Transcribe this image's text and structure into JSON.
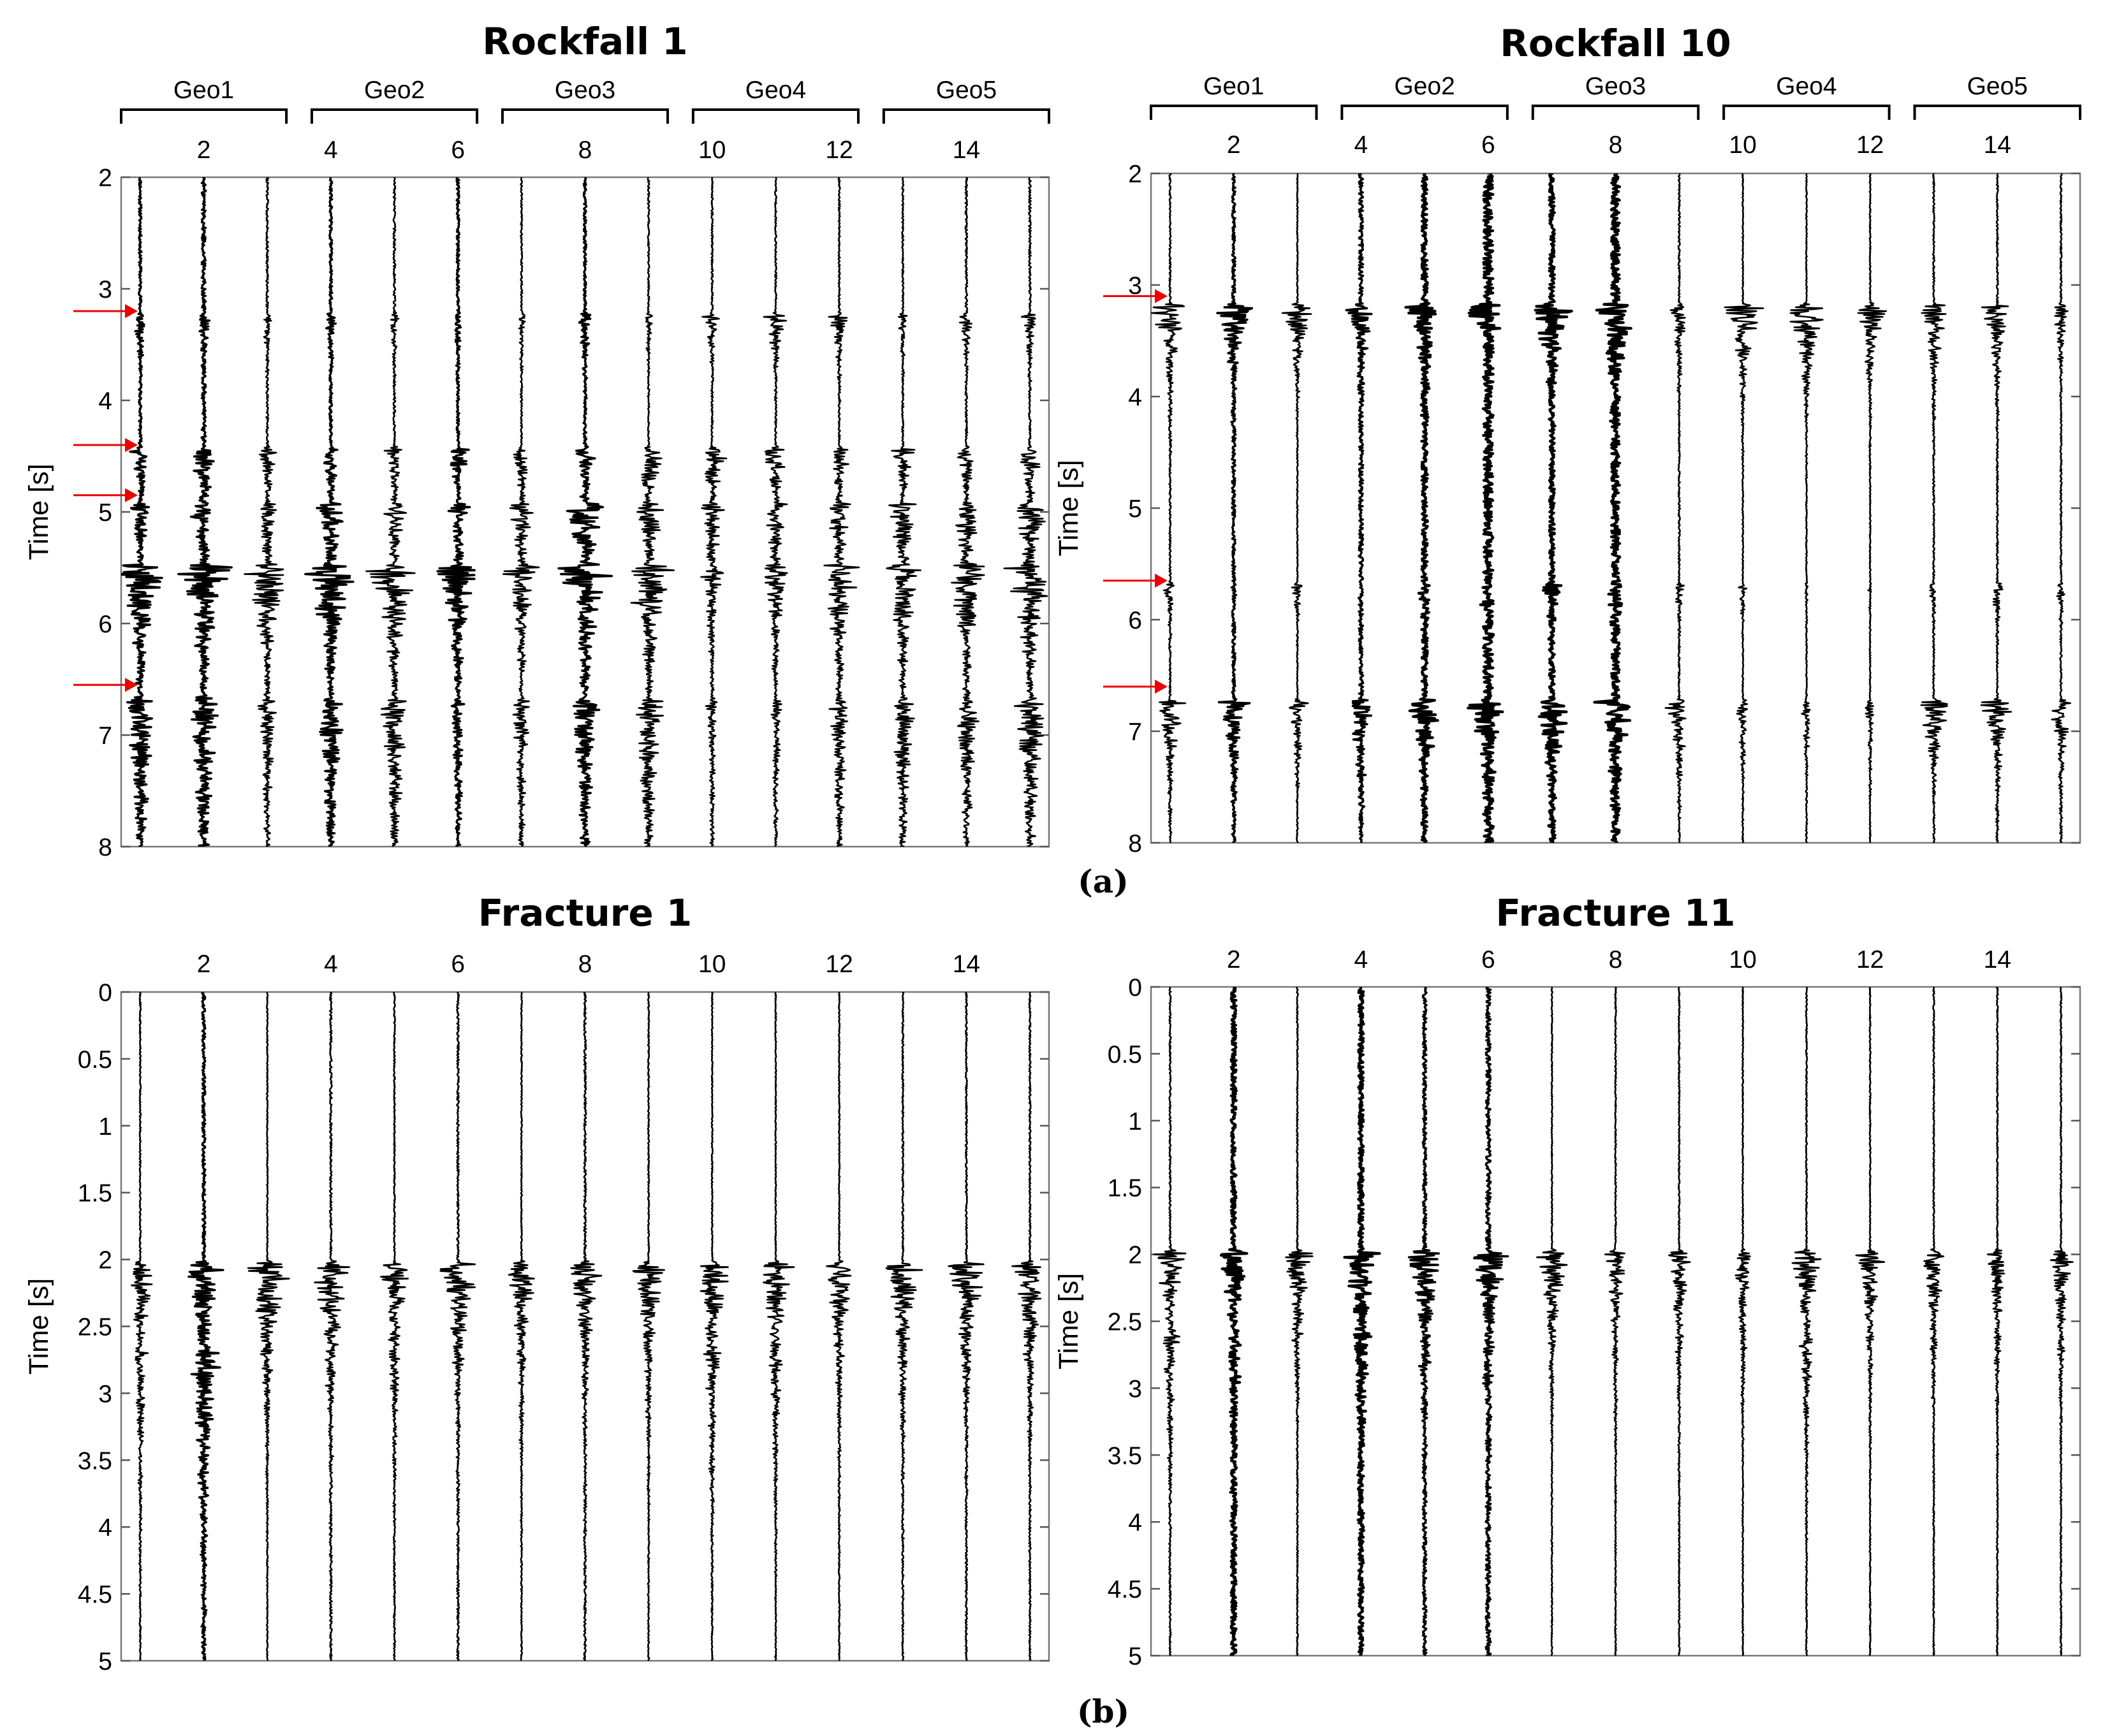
{
  "figure": {
    "sublabels": [
      "(a)",
      "(b)"
    ],
    "arrow_color": "#ee0000",
    "trace_color": "#000000"
  },
  "chart_data": [
    {
      "type": "seismogram",
      "title": "Rockfall 1",
      "xlabel": "",
      "ylabel": "Time [s]",
      "xlim": [
        0.7,
        15.3
      ],
      "ylim": [
        2,
        8
      ],
      "xticks": [
        2,
        4,
        6,
        8,
        10,
        12,
        14
      ],
      "yticks": [
        2,
        3,
        4,
        5,
        6,
        7,
        8
      ],
      "channels": [
        1,
        2,
        3,
        4,
        5,
        6,
        7,
        8,
        9,
        10,
        11,
        12,
        13,
        14,
        15
      ],
      "geophone_groups": [
        {
          "label": "Geo1",
          "channels": [
            1,
            3
          ]
        },
        {
          "label": "Geo2",
          "channels": [
            4,
            6
          ]
        },
        {
          "label": "Geo3",
          "channels": [
            7,
            9
          ]
        },
        {
          "label": "Geo4",
          "channels": [
            10,
            12
          ]
        },
        {
          "label": "Geo5",
          "channels": [
            13,
            15
          ]
        }
      ],
      "event_arrows_s": [
        3.2,
        4.4,
        4.85,
        6.55
      ],
      "noise_level": [
        0.25,
        0.4,
        0.2,
        0.25,
        0.2,
        0.25,
        0.15,
        0.25,
        0.15,
        0.15,
        0.15,
        0.15,
        0.15,
        0.2,
        0.2
      ],
      "arrivals": [
        {
          "t": 3.25,
          "amp": [
            0.35,
            0.35,
            0.3,
            0.3,
            0.3,
            0.3,
            0.3,
            0.5,
            0.3,
            0.5,
            0.7,
            0.6,
            0.3,
            0.4,
            0.5
          ],
          "dur": 0.25
        },
        {
          "t": 4.45,
          "amp": [
            0.7,
            0.9,
            0.6,
            0.7,
            0.6,
            0.6,
            0.6,
            0.8,
            1.0,
            1.0,
            0.9,
            0.7,
            0.7,
            0.6,
            0.8
          ],
          "dur": 0.3
        },
        {
          "t": 4.95,
          "amp": [
            0.6,
            0.7,
            0.6,
            0.9,
            0.7,
            0.6,
            0.7,
            1.2,
            0.9,
            0.6,
            0.7,
            0.8,
            0.9,
            0.9,
            1.0
          ],
          "dur": 0.45
        },
        {
          "t": 5.5,
          "amp": [
            1.6,
            1.6,
            1.4,
            1.5,
            1.5,
            1.2,
            1.1,
            1.6,
            1.6,
            0.6,
            0.8,
            1.2,
            1.2,
            1.3,
            1.6
          ],
          "dur": 0.5
        },
        {
          "t": 6.7,
          "amp": [
            0.9,
            0.9,
            0.5,
            0.8,
            0.8,
            0.4,
            0.5,
            0.9,
            0.9,
            0.3,
            0.3,
            0.6,
            0.7,
            0.7,
            1.0
          ],
          "dur": 0.9
        }
      ]
    },
    {
      "type": "seismogram",
      "title": "Rockfall 10",
      "xlabel": "",
      "ylabel": "Time [s]",
      "xlim": [
        0.7,
        15.3
      ],
      "ylim": [
        2,
        8
      ],
      "xticks": [
        2,
        4,
        6,
        8,
        10,
        12,
        14
      ],
      "yticks": [
        2,
        3,
        4,
        5,
        6,
        7,
        8
      ],
      "channels": [
        1,
        2,
        3,
        4,
        5,
        6,
        7,
        8,
        9,
        10,
        11,
        12,
        13,
        14,
        15
      ],
      "geophone_groups": [
        {
          "label": "Geo1",
          "channels": [
            1,
            3
          ]
        },
        {
          "label": "Geo2",
          "channels": [
            4,
            6
          ]
        },
        {
          "label": "Geo3",
          "channels": [
            7,
            9
          ]
        },
        {
          "label": "Geo4",
          "channels": [
            10,
            12
          ]
        },
        {
          "label": "Geo5",
          "channels": [
            13,
            15
          ]
        }
      ],
      "event_arrows_s": [
        3.1,
        5.65,
        6.6
      ],
      "noise_level": [
        0.15,
        0.3,
        0.1,
        0.4,
        0.55,
        0.9,
        0.5,
        0.8,
        0.15,
        0.1,
        0.1,
        0.1,
        0.15,
        0.15,
        0.15
      ],
      "arrivals": [
        {
          "t": 3.2,
          "amp": [
            1.2,
            1.1,
            1.0,
            0.8,
            1.0,
            1.1,
            1.3,
            1.4,
            0.6,
            1.3,
            1.3,
            1.0,
            1.0,
            0.9,
            0.5
          ],
          "dur": 0.35
        },
        {
          "t": 5.7,
          "amp": [
            0.4,
            0.1,
            0.4,
            0.1,
            0.3,
            0.4,
            0.6,
            0.5,
            0.3,
            0.3,
            0.1,
            0.1,
            0.3,
            0.4,
            0.3
          ],
          "dur": 0.2
        },
        {
          "t": 6.75,
          "amp": [
            1.1,
            1.1,
            0.6,
            1.1,
            1.1,
            1.2,
            1.2,
            1.2,
            0.9,
            0.5,
            0.4,
            0.3,
            1.0,
            1.0,
            0.8
          ],
          "dur": 0.35
        }
      ]
    },
    {
      "type": "seismogram",
      "title": "Fracture 1",
      "xlabel": "",
      "ylabel": "Time [s]",
      "xlim": [
        0.7,
        15.3
      ],
      "ylim": [
        0,
        5
      ],
      "xticks": [
        2,
        4,
        6,
        8,
        10,
        12,
        14
      ],
      "yticks": [
        0,
        0.5,
        1,
        1.5,
        2,
        2.5,
        3,
        3.5,
        4,
        4.5,
        5
      ],
      "channels": [
        1,
        2,
        3,
        4,
        5,
        6,
        7,
        8,
        9,
        10,
        11,
        12,
        13,
        14,
        15
      ],
      "noise_level": [
        0.12,
        0.3,
        0.1,
        0.2,
        0.12,
        0.2,
        0.1,
        0.2,
        0.12,
        0.1,
        0.1,
        0.1,
        0.15,
        0.15,
        0.15
      ],
      "arrivals": [
        {
          "t": 2.05,
          "amp": [
            0.9,
            1.1,
            1.4,
            1.3,
            1.0,
            1.2,
            1.0,
            1.0,
            1.0,
            1.1,
            1.0,
            1.0,
            1.1,
            1.2,
            1.1
          ],
          "dur": 0.45
        },
        {
          "t": 2.7,
          "amp": [
            0.3,
            0.8,
            0.1,
            0.1,
            0.2,
            0.1,
            0.1,
            0.1,
            0.1,
            0.3,
            0.3,
            0.1,
            0.1,
            0.1,
            0.1
          ],
          "dur": 0.8
        }
      ]
    },
    {
      "type": "seismogram",
      "title": "Fracture 11",
      "xlabel": "",
      "ylabel": "Time [s]",
      "xlim": [
        0.7,
        15.3
      ],
      "ylim": [
        0,
        5
      ],
      "xticks": [
        2,
        4,
        6,
        8,
        10,
        12,
        14
      ],
      "yticks": [
        0,
        0.5,
        1,
        1.5,
        2,
        2.5,
        3,
        3.5,
        4,
        4.5,
        5
      ],
      "channels": [
        1,
        2,
        3,
        4,
        5,
        6,
        7,
        8,
        9,
        10,
        11,
        12,
        13,
        14,
        15
      ],
      "noise_level": [
        0.15,
        0.5,
        0.12,
        0.5,
        0.35,
        0.45,
        0.1,
        0.12,
        0.12,
        0.1,
        0.12,
        0.1,
        0.12,
        0.12,
        0.12
      ],
      "arrivals": [
        {
          "t": 2.0,
          "amp": [
            1.0,
            0.9,
            1.0,
            1.2,
            1.2,
            1.1,
            1.0,
            0.8,
            0.8,
            0.7,
            1.0,
            0.9,
            0.8,
            0.7,
            0.7
          ],
          "dur": 0.4
        },
        {
          "t": 2.6,
          "amp": [
            0.4,
            0.3,
            0.1,
            0.3,
            0.2,
            0.2,
            0.1,
            0.1,
            0.1,
            0.1,
            0.3,
            0.1,
            0.1,
            0.1,
            0.1
          ],
          "dur": 0.6
        }
      ]
    }
  ]
}
